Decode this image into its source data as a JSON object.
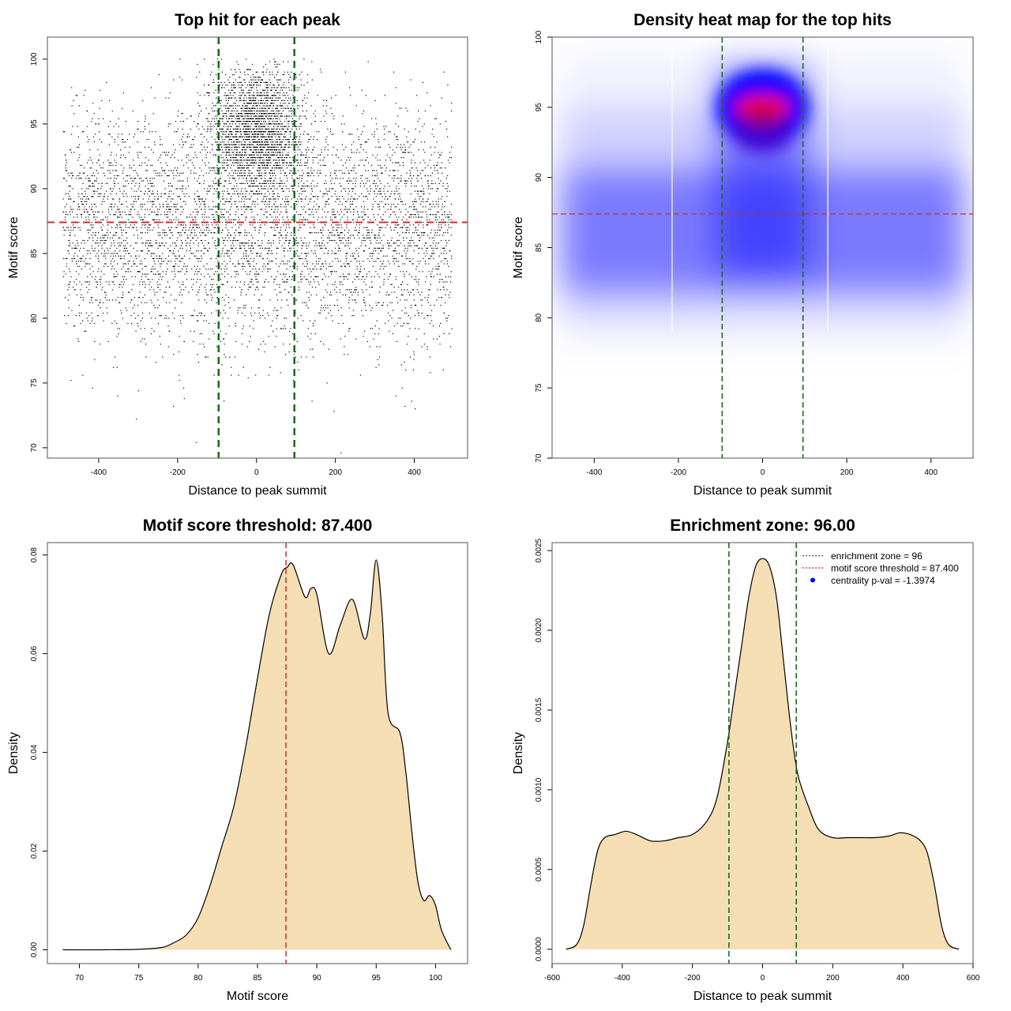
{
  "colors": {
    "threshold": "#d62728",
    "zone": "#1a6b1a",
    "fill": "#f5deb3",
    "heat_low": "#ffffff",
    "heat_mid": "#0000ff",
    "heat_high": "#ff0000",
    "point": "#000000"
  },
  "chart_data": [
    {
      "id": "scatter",
      "type": "scatter",
      "title": "Top hit for each peak",
      "xlabel": "Distance to peak summit",
      "ylabel": "Motif score",
      "xlim": [
        -530,
        535
      ],
      "ylim": [
        69.2,
        101.7
      ],
      "xticks": [
        -400,
        -200,
        0,
        200,
        400
      ],
      "yticks": [
        70,
        75,
        80,
        85,
        90,
        95,
        100
      ],
      "threshold_y": 87.4,
      "zone_x": [
        -96,
        96
      ],
      "point_distribution": {
        "x_range": [
          -490,
          495
        ],
        "center_cluster": {
          "x_sd": 60,
          "y_mean": 94.5,
          "y_sd": 2.5
        },
        "background": {
          "y_mean": 87.0,
          "y_sd": 4.3
        }
      }
    },
    {
      "id": "heatmap",
      "type": "heatmap",
      "title": "Density heat map for the top hits",
      "xlabel": "Distance to peak summit",
      "ylabel": "Motif score",
      "xlim": [
        -500,
        500
      ],
      "ylim": [
        70,
        100
      ],
      "xticks": [
        -400,
        -200,
        0,
        200,
        400
      ],
      "yticks": [
        70,
        75,
        80,
        85,
        90,
        95,
        100
      ],
      "threshold_y": 87.4,
      "zone_x": [
        -96,
        96
      ],
      "peak": {
        "x": 0,
        "y": 95
      }
    },
    {
      "id": "score-density",
      "type": "area",
      "title": "Motif score threshold: 87.400",
      "xlabel": "Motif score",
      "ylabel": "Density",
      "xlim": [
        67.3,
        102.7
      ],
      "ylim": [
        -0.0028,
        0.0825
      ],
      "xticks": [
        70,
        75,
        80,
        85,
        90,
        95,
        100
      ],
      "yticks": [
        0.0,
        0.02,
        0.04,
        0.06,
        0.08
      ],
      "ytick_labels": [
        "0.00",
        "0.02",
        "0.04",
        "0.06",
        "0.08"
      ],
      "threshold_x": 87.4,
      "x": [
        68.6,
        72,
        75,
        77,
        78,
        79,
        80,
        81,
        82,
        83,
        84,
        85,
        86,
        87,
        87.5,
        88,
        89,
        89.5,
        90,
        91,
        92,
        93,
        94,
        94.5,
        95,
        95.5,
        96,
        97,
        97.5,
        98,
        98.5,
        99,
        99.5,
        100,
        100.5,
        101.3
      ],
      "y": [
        0.0,
        0.0,
        0.0001,
        0.0005,
        0.0015,
        0.003,
        0.0065,
        0.013,
        0.021,
        0.029,
        0.041,
        0.055,
        0.068,
        0.076,
        0.0775,
        0.078,
        0.0715,
        0.0732,
        0.072,
        0.06,
        0.066,
        0.071,
        0.063,
        0.068,
        0.079,
        0.068,
        0.048,
        0.044,
        0.036,
        0.024,
        0.014,
        0.01,
        0.011,
        0.009,
        0.004,
        0.0
      ]
    },
    {
      "id": "distance-density",
      "type": "area",
      "title": "Enrichment zone: 96.00",
      "xlabel": "Distance to peak summit",
      "ylabel": "Density",
      "xlim": [
        -600,
        600
      ],
      "ylim": [
        -9e-05,
        0.00255
      ],
      "xticks": [
        -600,
        -400,
        -200,
        0,
        200,
        400,
        600
      ],
      "yticks": [
        0.0,
        0.0005,
        0.001,
        0.0015,
        0.002,
        0.0025
      ],
      "ytick_labels": [
        "0.0000",
        "0.0005",
        "0.0010",
        "0.0015",
        "0.0020",
        "0.0025"
      ],
      "zone_x": [
        -96,
        96
      ],
      "x": [
        -560,
        -530,
        -510,
        -490,
        -470,
        -450,
        -420,
        -390,
        -360,
        -320,
        -280,
        -240,
        -200,
        -160,
        -130,
        -100,
        -80,
        -60,
        -40,
        -20,
        0,
        20,
        40,
        60,
        80,
        100,
        130,
        160,
        200,
        240,
        280,
        320,
        360,
        390,
        420,
        450,
        470,
        490,
        510,
        530,
        560
      ],
      "y": [
        0.0,
        3e-05,
        0.00015,
        0.0004,
        0.00062,
        0.0007,
        0.00072,
        0.00074,
        0.00072,
        0.00068,
        0.00068,
        0.0007,
        0.00072,
        0.0008,
        0.00095,
        0.0013,
        0.0016,
        0.0019,
        0.0022,
        0.0024,
        0.00245,
        0.0024,
        0.0022,
        0.0018,
        0.0014,
        0.0011,
        0.0009,
        0.00075,
        0.0007,
        0.0007,
        0.0007,
        0.0007,
        0.00071,
        0.00073,
        0.00072,
        0.00068,
        0.0006,
        0.0004,
        0.00015,
        3e-05,
        0.0
      ],
      "legend": {
        "position": "top-right",
        "entries": [
          {
            "label": "enrichment zone = 96",
            "style": "dotted-line",
            "color": "#1a6b1a"
          },
          {
            "label": "motif score threshold = 87.400",
            "style": "dotted-line",
            "color": "#d62728"
          },
          {
            "label": "centrality p-val = -1.3974",
            "style": "point",
            "color": "#0000ff"
          }
        ]
      }
    }
  ]
}
